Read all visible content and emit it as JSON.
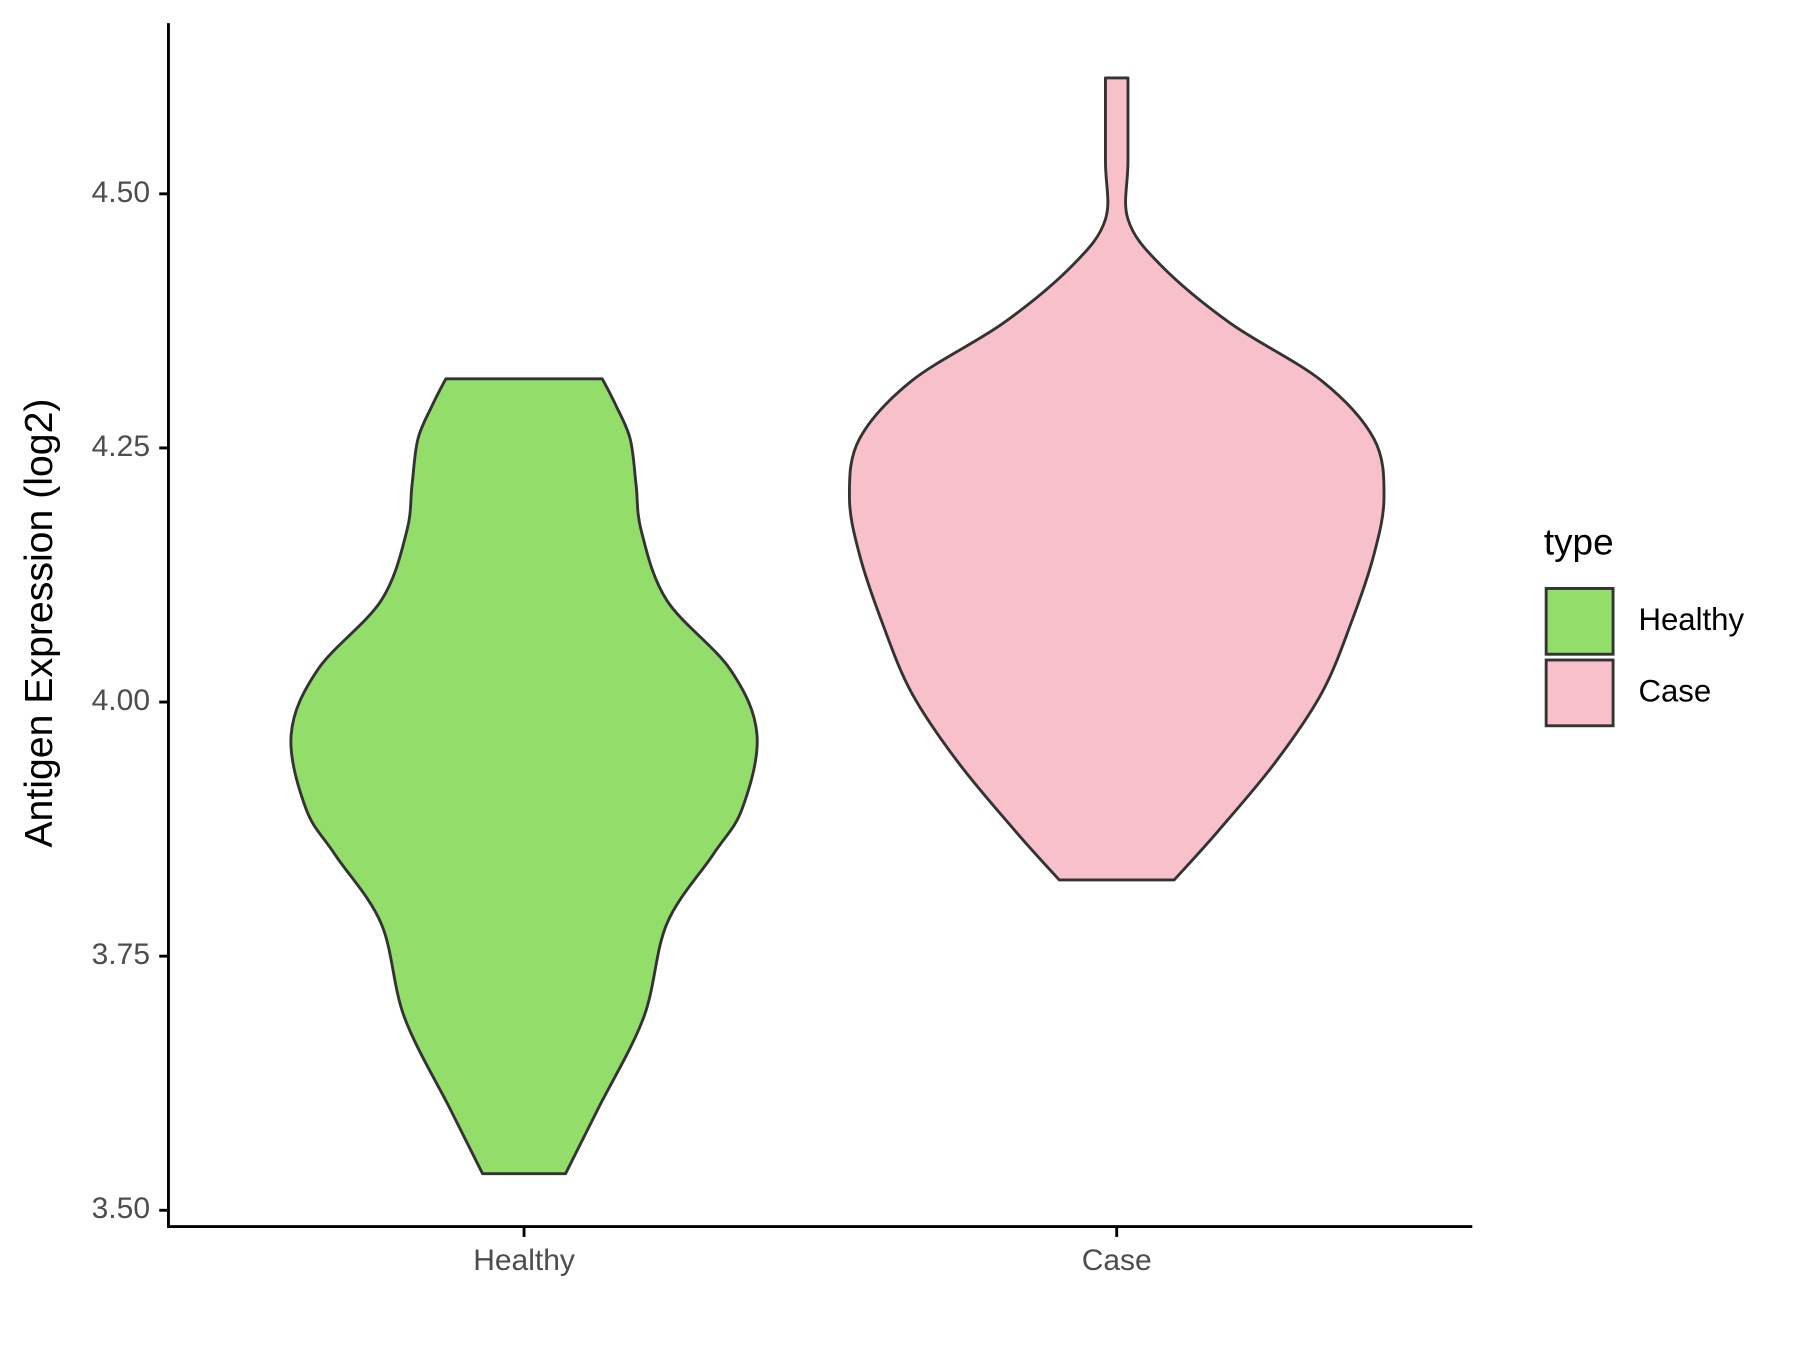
{
  "chart_data": {
    "type": "violin",
    "y_label": "Antigen Expression (log2)",
    "categories": [
      "Healthy",
      "Case"
    ],
    "legend_title": "type",
    "legend_position": "right",
    "ylim": [
      3.484,
      4.668
    ],
    "yticks": [
      {
        "value": 3.5,
        "label": "3.50"
      },
      {
        "value": 3.75,
        "label": "3.75"
      },
      {
        "value": 4.0,
        "label": "4.00"
      },
      {
        "value": 4.25,
        "label": "4.25"
      },
      {
        "value": 4.5,
        "label": "4.50"
      }
    ],
    "series": [
      {
        "name": "Healthy",
        "color": "#93dd6b",
        "y": [
          3.536,
          3.6,
          3.69,
          3.782,
          3.85,
          3.895,
          3.968,
          4.032,
          4.1,
          4.168,
          4.214,
          4.259,
          4.293,
          4.318
        ],
        "density": [
          0.07,
          0.125,
          0.202,
          0.241,
          0.319,
          0.368,
          0.393,
          0.348,
          0.241,
          0.198,
          0.189,
          0.179,
          0.154,
          0.132
        ]
      },
      {
        "name": "Case",
        "color": "#f7c0cb",
        "y": [
          3.825,
          3.873,
          3.941,
          4.009,
          4.077,
          4.145,
          4.202,
          4.259,
          4.316,
          4.373,
          4.43,
          4.475,
          4.532,
          4.614
        ],
        "density": [
          0.097,
          0.171,
          0.268,
          0.346,
          0.395,
          0.434,
          0.451,
          0.434,
          0.346,
          0.191,
          0.074,
          0.019,
          0.019,
          0.019
        ]
      }
    ]
  }
}
